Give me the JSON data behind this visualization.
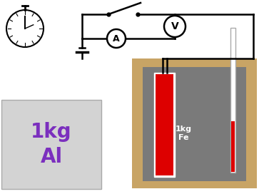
{
  "bg_color": "#ffffff",
  "cork_color": "#c8a465",
  "metal_block_color": "#7a7a7a",
  "heater_color": "#dd0000",
  "al_box_color": "#d3d3d3",
  "al_text_color": "#7b2fbe",
  "al_label": "1kg\nAl",
  "fe_label_1": "1kg",
  "fe_label_2": "Fe",
  "wire_color": "#000000",
  "circuit_lw": 1.8,
  "voltmeter_label": "V",
  "ammeter_label": "A",
  "figw": 3.63,
  "figh": 2.72,
  "dpi": 100
}
